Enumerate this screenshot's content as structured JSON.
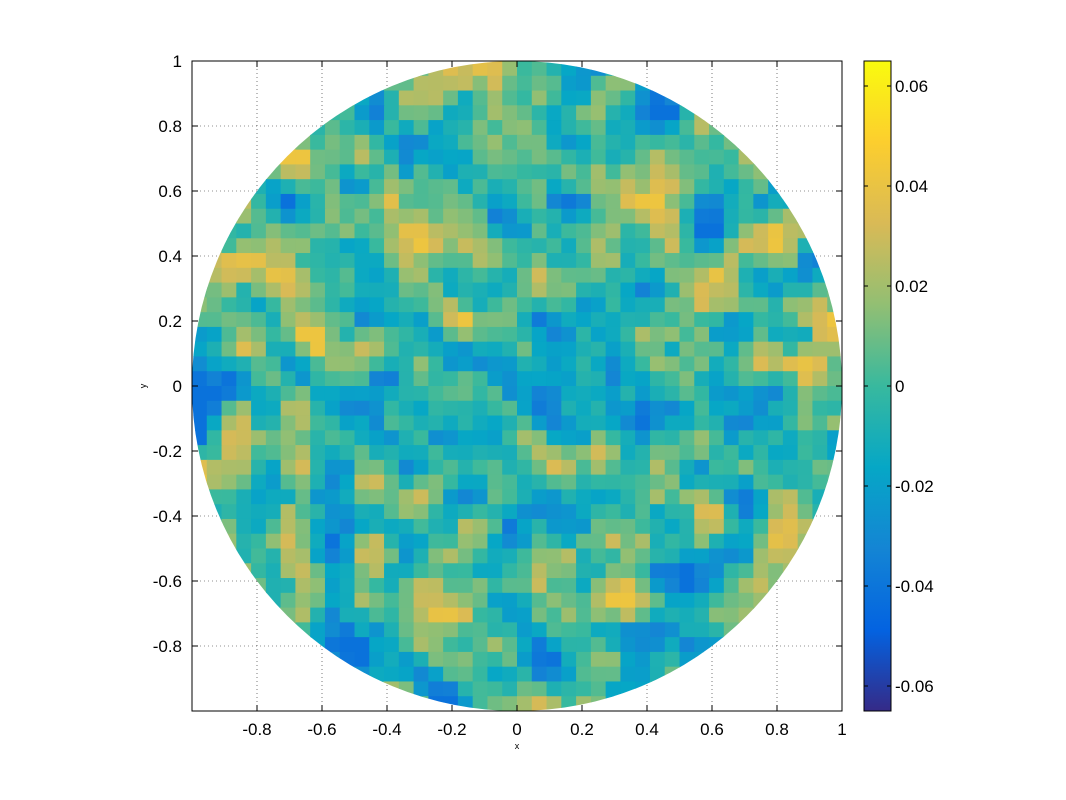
{
  "chart_data": {
    "type": "heatmap",
    "title": "",
    "xlabel": "x",
    "ylabel": "y",
    "xlim": [
      -1,
      1
    ],
    "ylim": [
      -1,
      1
    ],
    "x_ticks": [
      -0.8,
      -0.6,
      -0.4,
      -0.2,
      0,
      0.2,
      0.4,
      0.6,
      0.8,
      1
    ],
    "x_tick_labels": [
      "-0.8",
      "-0.6",
      "-0.4",
      "-0.2",
      "0",
      "0.2",
      "0.4",
      "0.6",
      "0.8",
      "1"
    ],
    "y_ticks": [
      1,
      0.8,
      0.6,
      0.4,
      0.2,
      0,
      -0.2,
      -0.4,
      -0.6,
      -0.8
    ],
    "y_tick_labels": [
      "1",
      "0.8",
      "0.6",
      "0.4",
      "0.2",
      "0",
      "-0.2",
      "-0.4",
      "-0.6",
      "-0.8"
    ],
    "grid": true,
    "domain_shape": "unit disk",
    "colorbar": {
      "placement": "right",
      "clim": [
        -0.065,
        0.065
      ],
      "ticks": [
        0.06,
        0.04,
        0.02,
        0,
        -0.02,
        -0.04,
        -0.06
      ],
      "tick_labels": [
        "0.06",
        "0.04",
        "0.02",
        "0",
        "-0.02",
        "-0.04",
        "-0.06"
      ],
      "colormap": "parula",
      "colormap_stops": [
        "#352a87",
        "#0363e1",
        "#1485d4",
        "#06a7c6",
        "#38b99e",
        "#92bf73",
        "#d9ba56",
        "#fcce2e",
        "#f9fb0e"
      ]
    }
  }
}
